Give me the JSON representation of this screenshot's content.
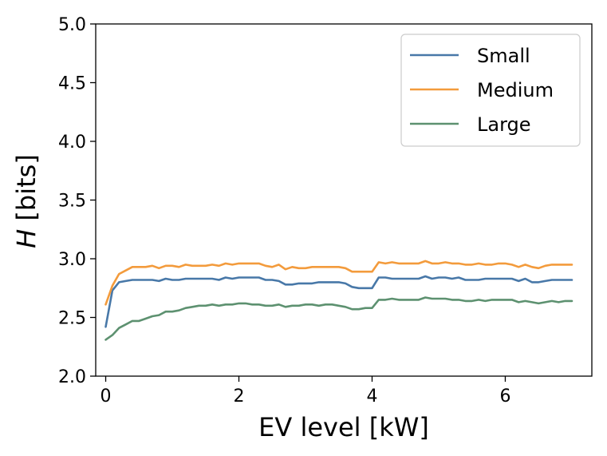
{
  "chart_data": {
    "type": "line",
    "xlabel": "EV level [kW]",
    "ylabel_italic": "H",
    "ylabel_rest": " [bits]",
    "xlim": [
      -0.15,
      7.3
    ],
    "ylim": [
      2.0,
      5.0
    ],
    "xticks": [
      0,
      2,
      4,
      6
    ],
    "xtick_labels": [
      "0",
      "2",
      "4",
      "6"
    ],
    "yticks": [
      2.0,
      2.5,
      3.0,
      3.5,
      4.0,
      4.5,
      5.0
    ],
    "ytick_labels": [
      "2.0",
      "2.5",
      "3.0",
      "3.5",
      "4.0",
      "4.5",
      "5.0"
    ],
    "grid": false,
    "legend_position": "top-right",
    "x": [
      0.0,
      0.1,
      0.2,
      0.3,
      0.4,
      0.5,
      0.6,
      0.7,
      0.8,
      0.9,
      1.0,
      1.1,
      1.2,
      1.3,
      1.4,
      1.5,
      1.6,
      1.7,
      1.8,
      1.9,
      2.0,
      2.1,
      2.2,
      2.3,
      2.4,
      2.5,
      2.6,
      2.7,
      2.8,
      2.9,
      3.0,
      3.1,
      3.2,
      3.3,
      3.4,
      3.5,
      3.6,
      3.7,
      3.8,
      3.9,
      4.0,
      4.1,
      4.2,
      4.3,
      4.4,
      4.5,
      4.6,
      4.7,
      4.8,
      4.9,
      5.0,
      5.1,
      5.2,
      5.3,
      5.4,
      5.5,
      5.6,
      5.7,
      5.8,
      5.9,
      6.0,
      6.1,
      6.2,
      6.3,
      6.4,
      6.5,
      6.6,
      6.7,
      6.8,
      6.9,
      7.0
    ],
    "series": [
      {
        "name": "Small",
        "color": "#4878a8",
        "values": [
          2.42,
          2.73,
          2.8,
          2.81,
          2.82,
          2.82,
          2.82,
          2.82,
          2.81,
          2.83,
          2.82,
          2.82,
          2.83,
          2.83,
          2.83,
          2.83,
          2.83,
          2.82,
          2.84,
          2.83,
          2.84,
          2.84,
          2.84,
          2.84,
          2.82,
          2.82,
          2.81,
          2.78,
          2.78,
          2.79,
          2.79,
          2.79,
          2.8,
          2.8,
          2.8,
          2.8,
          2.79,
          2.76,
          2.75,
          2.75,
          2.75,
          2.84,
          2.84,
          2.83,
          2.83,
          2.83,
          2.83,
          2.83,
          2.85,
          2.83,
          2.84,
          2.84,
          2.83,
          2.84,
          2.82,
          2.82,
          2.82,
          2.83,
          2.83,
          2.83,
          2.83,
          2.83,
          2.81,
          2.83,
          2.8,
          2.8,
          2.81,
          2.82,
          2.82,
          2.82,
          2.82
        ]
      },
      {
        "name": "Medium",
        "color": "#f39b3c",
        "values": [
          2.61,
          2.77,
          2.87,
          2.9,
          2.93,
          2.93,
          2.93,
          2.94,
          2.92,
          2.94,
          2.94,
          2.93,
          2.95,
          2.94,
          2.94,
          2.94,
          2.95,
          2.94,
          2.96,
          2.95,
          2.96,
          2.96,
          2.96,
          2.96,
          2.94,
          2.93,
          2.95,
          2.91,
          2.93,
          2.92,
          2.92,
          2.93,
          2.93,
          2.93,
          2.93,
          2.93,
          2.92,
          2.89,
          2.89,
          2.89,
          2.89,
          2.97,
          2.96,
          2.97,
          2.96,
          2.96,
          2.96,
          2.96,
          2.98,
          2.96,
          2.96,
          2.97,
          2.96,
          2.96,
          2.95,
          2.95,
          2.96,
          2.95,
          2.95,
          2.96,
          2.96,
          2.95,
          2.93,
          2.95,
          2.93,
          2.92,
          2.94,
          2.95,
          2.95,
          2.95,
          2.95
        ]
      },
      {
        "name": "Large",
        "color": "#5d9170",
        "values": [
          2.31,
          2.35,
          2.41,
          2.44,
          2.47,
          2.47,
          2.49,
          2.51,
          2.52,
          2.55,
          2.55,
          2.56,
          2.58,
          2.59,
          2.6,
          2.6,
          2.61,
          2.6,
          2.61,
          2.61,
          2.62,
          2.62,
          2.61,
          2.61,
          2.6,
          2.6,
          2.61,
          2.59,
          2.6,
          2.6,
          2.61,
          2.61,
          2.6,
          2.61,
          2.61,
          2.6,
          2.59,
          2.57,
          2.57,
          2.58,
          2.58,
          2.65,
          2.65,
          2.66,
          2.65,
          2.65,
          2.65,
          2.65,
          2.67,
          2.66,
          2.66,
          2.66,
          2.65,
          2.65,
          2.64,
          2.64,
          2.65,
          2.64,
          2.65,
          2.65,
          2.65,
          2.65,
          2.63,
          2.64,
          2.63,
          2.62,
          2.63,
          2.64,
          2.63,
          2.64,
          2.64
        ]
      }
    ]
  }
}
